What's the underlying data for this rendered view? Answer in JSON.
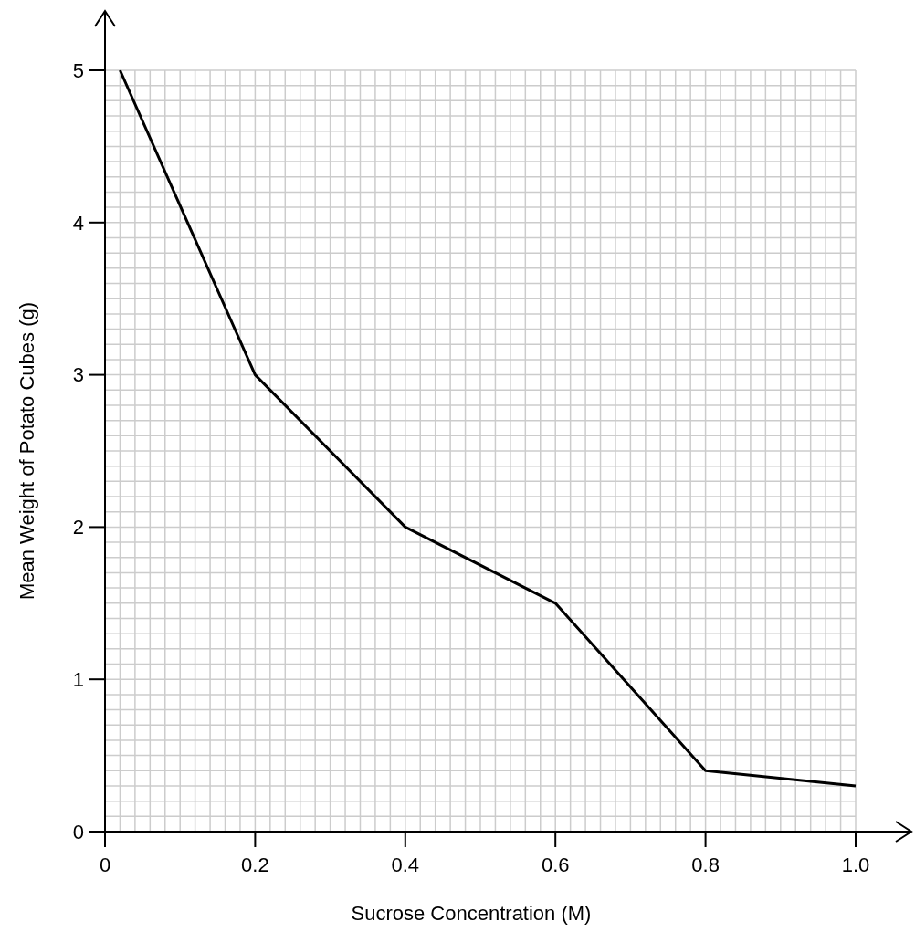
{
  "chart_data": {
    "type": "line",
    "xlabel": "Sucrose Concentration (M)",
    "ylabel": "Mean Weight of Potato Cubes (g)",
    "x": [
      0.02,
      0.2,
      0.4,
      0.6,
      0.8,
      1.0
    ],
    "series": [
      {
        "color": "#000000",
        "values": [
          5,
          3,
          2,
          1.5,
          0.4,
          0.3
        ]
      }
    ],
    "xlim": [
      0,
      1
    ],
    "ylim": [
      0,
      5
    ],
    "xticks": [
      0,
      0.2,
      0.4,
      0.6,
      0.8,
      {
        "value": 1,
        "label": "1.0"
      }
    ],
    "yticks": [
      0,
      1,
      2,
      3,
      4,
      5
    ],
    "grid": true,
    "marker": "none",
    "line_style": "solid"
  }
}
